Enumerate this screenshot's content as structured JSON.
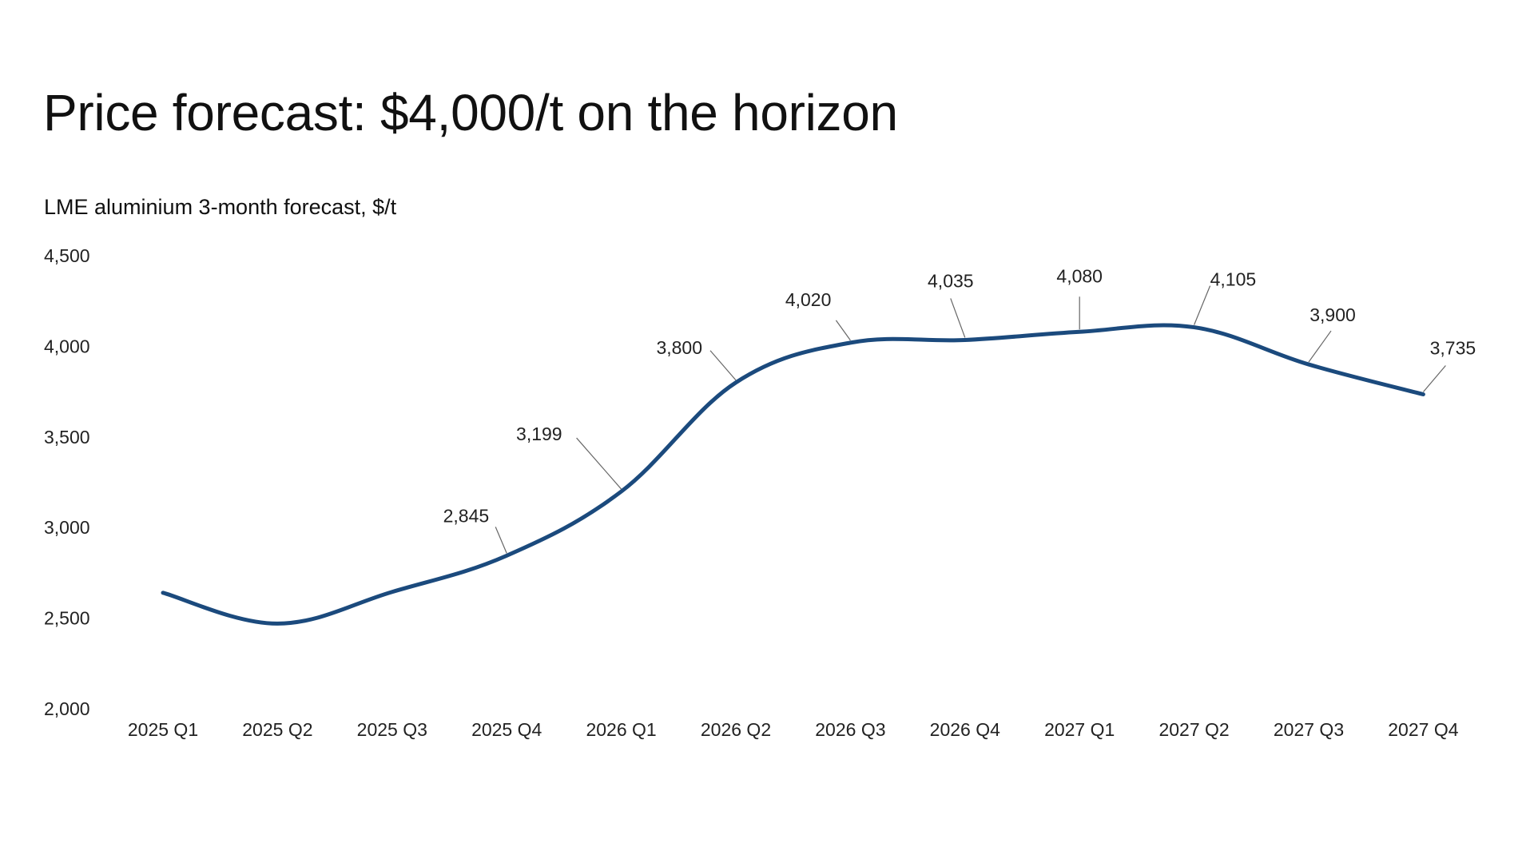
{
  "title": "Price forecast: $4,000/t on the horizon",
  "chart_data": {
    "type": "line",
    "subtitle": "LME aluminium 3-month forecast, $/t",
    "categories": [
      "2025 Q1",
      "2025 Q2",
      "2025 Q3",
      "2025 Q4",
      "2026 Q1",
      "2026 Q2",
      "2026 Q3",
      "2026 Q4",
      "2027 Q1",
      "2027 Q2",
      "2027 Q3",
      "2027 Q4"
    ],
    "series": [
      {
        "values": [
          2640,
          2470,
          2645,
          2845,
          3199,
          3800,
          4020,
          4035,
          4080,
          4105,
          3900,
          3735
        ]
      }
    ],
    "data_labels": [
      null,
      null,
      null,
      "2,845",
      "3,199",
      "3,800",
      "4,020",
      "4,035",
      "4,080",
      "4,105",
      "3,900",
      "3,735"
    ],
    "y_ticks": [
      "2,000",
      "2,500",
      "3,000",
      "3,500",
      "4,000",
      "4,500"
    ],
    "ylim": [
      2000,
      4500
    ],
    "grid": false,
    "line_color": "#1b4a7d"
  }
}
